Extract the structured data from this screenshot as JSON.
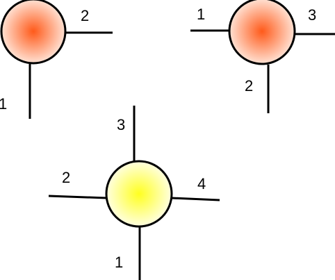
{
  "colors": {
    "orange_center": "#ff5a1a",
    "orange_edge": "#ffe2d4",
    "yellow_center": "#ffff20",
    "yellow_edge": "#ffffe0",
    "outline": "#000000"
  },
  "nodes": [
    {
      "name": "tensor-top-left",
      "fill": "orange",
      "legs": [
        {
          "label": "1"
        },
        {
          "label": "2"
        }
      ]
    },
    {
      "name": "tensor-top-right",
      "fill": "orange",
      "legs": [
        {
          "label": "1"
        },
        {
          "label": "2"
        },
        {
          "label": "3"
        }
      ]
    },
    {
      "name": "tensor-bottom",
      "fill": "yellow",
      "legs": [
        {
          "label": "1"
        },
        {
          "label": "2"
        },
        {
          "label": "3"
        },
        {
          "label": "4"
        }
      ]
    }
  ]
}
